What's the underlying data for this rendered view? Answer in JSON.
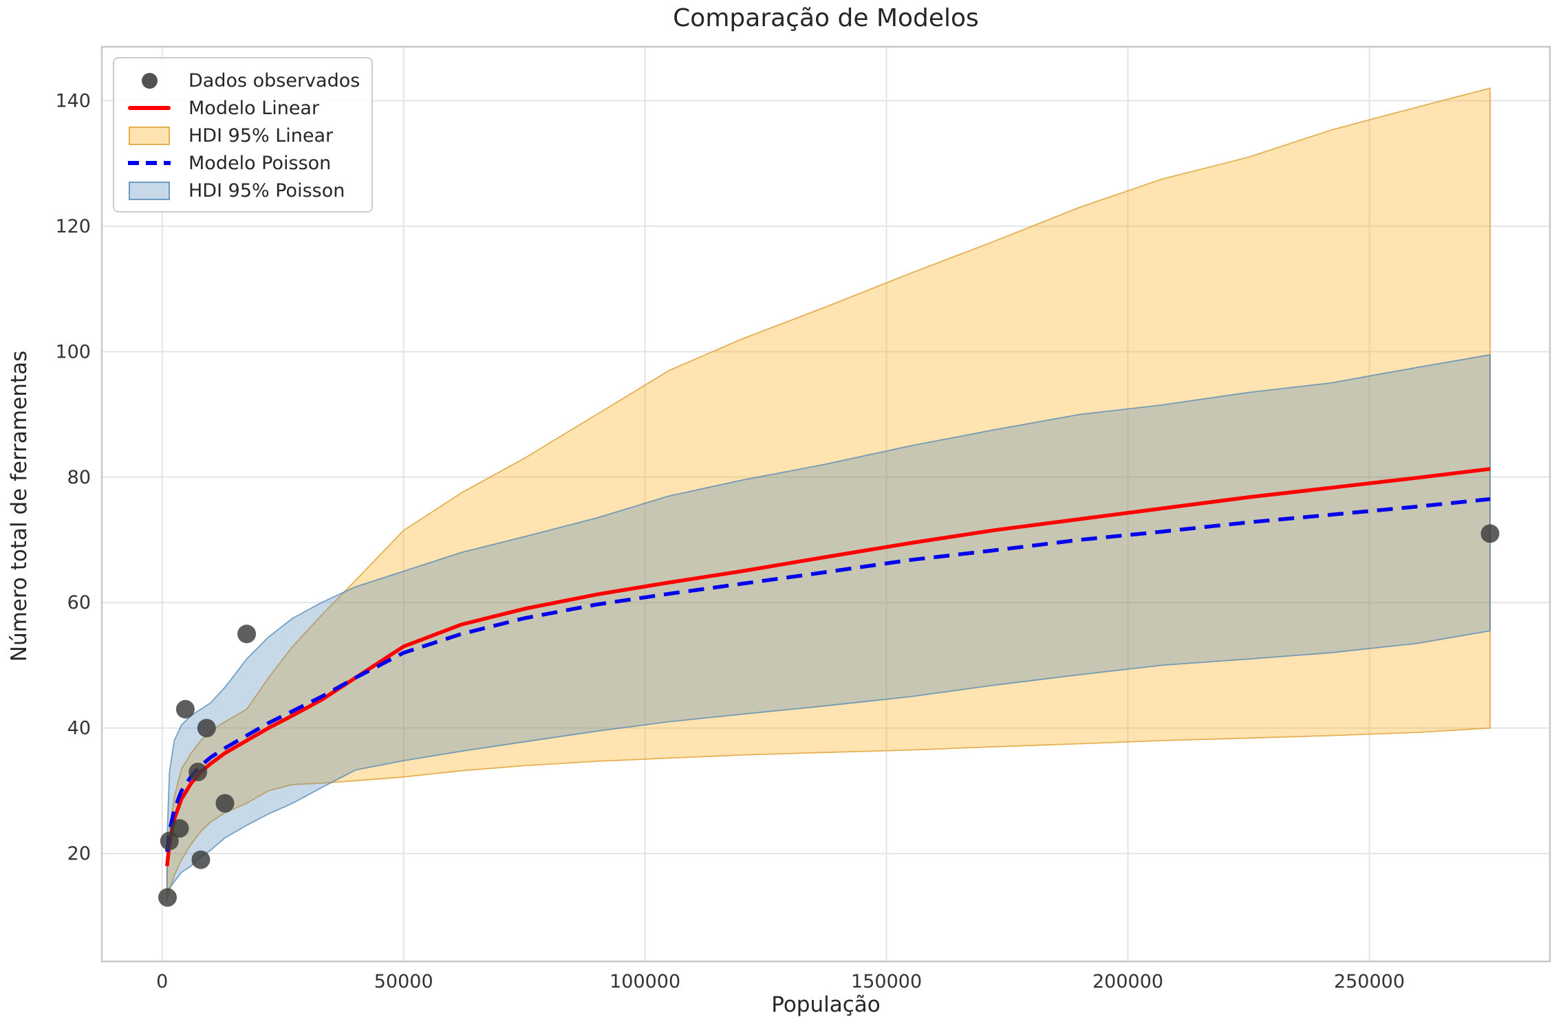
{
  "chart_data": {
    "type": "line",
    "title": "Comparação de Modelos",
    "xlabel": "População",
    "ylabel": "Número total de ferramentas",
    "xlim": [
      -12500,
      287400
    ],
    "ylim": [
      2.8,
      148.6
    ],
    "xticks": [
      0,
      50000,
      100000,
      150000,
      200000,
      250000
    ],
    "xtick_labels": [
      "0",
      "50000",
      "100000",
      "150000",
      "200000",
      "250000"
    ],
    "yticks": [
      20,
      40,
      60,
      80,
      100,
      120,
      140
    ],
    "grid": true,
    "legend_position": "upper left",
    "colors": {
      "linear_line": "#ff0000",
      "poisson_line": "#0000ee",
      "linear_band_fill": "rgba(255,165,0,0.30)",
      "linear_band_edge": "rgba(224,164,60,0.85)",
      "poisson_band_fill": "rgba(70,130,180,0.30)",
      "poisson_band_edge": "rgba(70,130,180,0.7)",
      "scatter": "#3a3a3a",
      "grid_line": "#e4e4e4",
      "spine": "#c8c8c8",
      "text": "#262626"
    },
    "scatter": {
      "label": "Dados observados",
      "points": [
        [
          1100,
          13
        ],
        [
          1500,
          22
        ],
        [
          3600,
          24
        ],
        [
          4791,
          43
        ],
        [
          7400,
          33
        ],
        [
          8000,
          19
        ],
        [
          9200,
          40
        ],
        [
          13000,
          28
        ],
        [
          17500,
          55
        ],
        [
          275000,
          71
        ]
      ]
    },
    "x_curve": [
      1000,
      1500,
      2500,
      4000,
      6000,
      8000,
      10000,
      13000,
      17500,
      22000,
      27000,
      33000,
      40000,
      50000,
      62000,
      75000,
      90000,
      105000,
      120000,
      137000,
      155000,
      172000,
      190000,
      207000,
      225000,
      242000,
      260000,
      275000
    ],
    "lines": [
      {
        "name": "Modelo Linear",
        "style": "solid",
        "y": [
          18,
          21.5,
          25.5,
          28.7,
          31.2,
          33,
          34.3,
          36,
          38,
          40,
          42,
          44.5,
          48,
          53,
          56.5,
          59,
          61.3,
          63.2,
          65,
          67.2,
          69.5,
          71.5,
          73.3,
          75,
          76.8,
          78.3,
          79.9,
          81.3
        ]
      },
      {
        "name": "Modelo Poisson",
        "style": "dashed",
        "y": [
          20.3,
          23.5,
          27,
          30,
          32.3,
          34,
          35.3,
          36.8,
          38.8,
          40.8,
          42.7,
          45,
          48,
          52,
          55,
          57.5,
          59.7,
          61.4,
          63,
          64.8,
          66.8,
          68.3,
          70,
          71.3,
          72.8,
          74,
          75.3,
          76.5
        ]
      }
    ],
    "bands": [
      {
        "name": "HDI 95% Linear",
        "hi": [
          19,
          23.5,
          29,
          33.5,
          36,
          38,
          39.5,
          41,
          43,
          48,
          53,
          58,
          63.5,
          71.5,
          77.5,
          83,
          90,
          97,
          102,
          107,
          112.5,
          117.5,
          123,
          127.5,
          131,
          135.3,
          139,
          142
        ],
        "lo": [
          12.5,
          14,
          16.5,
          19,
          21.5,
          23.5,
          25,
          26.5,
          28,
          30,
          31,
          31.2,
          31.6,
          32.2,
          33.2,
          34,
          34.7,
          35.2,
          35.7,
          36.1,
          36.5,
          37,
          37.5,
          38,
          38.4,
          38.8,
          39.3,
          40
        ]
      },
      {
        "name": "HDI 95% Poisson",
        "hi": [
          22,
          33,
          38,
          40.5,
          42,
          43,
          44,
          46.5,
          51,
          54.5,
          57.5,
          60,
          62.5,
          65,
          68,
          70.5,
          73.5,
          77,
          79.5,
          82,
          85,
          87.5,
          90,
          91.5,
          93.5,
          95,
          97.5,
          99.5
        ],
        "lo": [
          14,
          14.5,
          15.5,
          17,
          18,
          19.5,
          20.5,
          22.5,
          24.5,
          26.3,
          28,
          30.5,
          33.3,
          34.8,
          36.3,
          37.8,
          39.5,
          41,
          42.2,
          43.5,
          45,
          46.8,
          48.5,
          50,
          51,
          52,
          53.5,
          55.5
        ]
      }
    ],
    "legend": {
      "items": [
        {
          "kind": "marker",
          "label": "Dados observados"
        },
        {
          "kind": "line",
          "label": "Modelo Linear"
        },
        {
          "kind": "patch-tan",
          "label": "HDI 95% Linear"
        },
        {
          "kind": "dashed",
          "label": "Modelo Poisson"
        },
        {
          "kind": "patch-blue",
          "label": "HDI 95% Poisson"
        }
      ]
    }
  }
}
